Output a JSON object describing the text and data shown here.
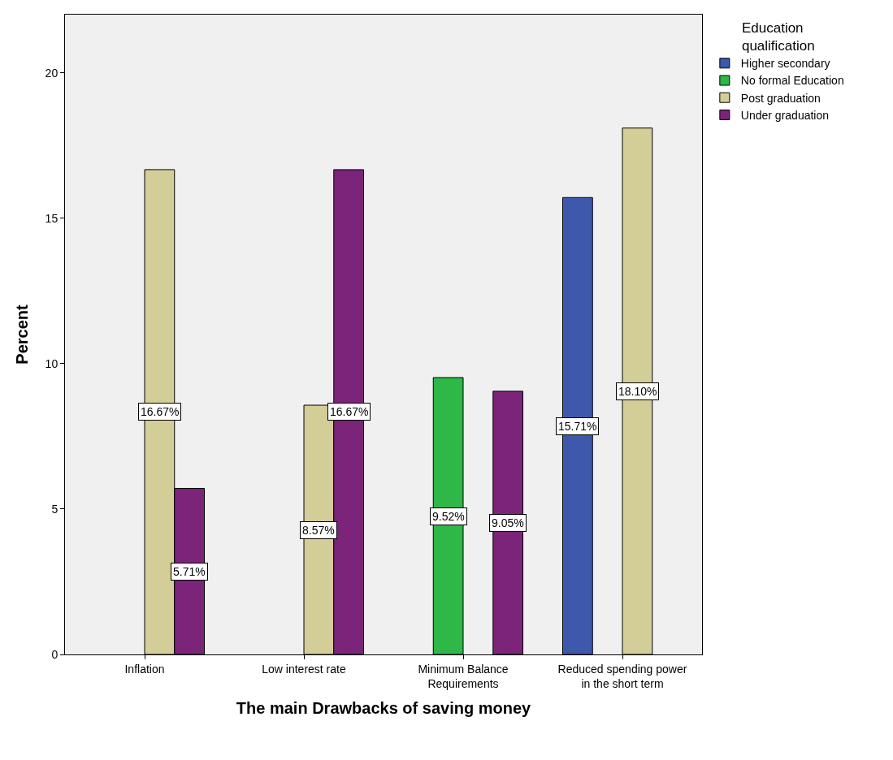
{
  "chart_data": {
    "type": "bar",
    "xlabel": "The main Drawbacks of saving money",
    "ylabel": "Percent",
    "legend_title": "Education qualification",
    "categories": [
      "Inflation",
      "Low interest rate",
      "Minimum Balance Requirements",
      "Reduced spending power in the short term"
    ],
    "series": [
      {
        "name": "Higher secondary",
        "color": "#3e58ac",
        "values": [
          null,
          null,
          null,
          15.71
        ],
        "value_labels": [
          null,
          null,
          null,
          "15.71%"
        ]
      },
      {
        "name": "No formal Education",
        "color": "#2eb848",
        "values": [
          null,
          null,
          9.52,
          null
        ],
        "value_labels": [
          null,
          null,
          "9.52%",
          null
        ]
      },
      {
        "name": "Post graduation",
        "color": "#d3ce97",
        "values": [
          16.67,
          8.57,
          null,
          18.1
        ],
        "value_labels": [
          "16.67%",
          "8.57%",
          null,
          "18.10%"
        ]
      },
      {
        "name": "Under graduation",
        "color": "#7b2479",
        "values": [
          5.71,
          16.67,
          9.05,
          null
        ],
        "value_labels": [
          "5.71%",
          "16.67%",
          "9.05%",
          null
        ]
      }
    ],
    "ylim": [
      0,
      22
    ],
    "yticks": [
      0,
      5,
      10,
      15,
      20
    ],
    "grid": false,
    "legend": "top right"
  }
}
